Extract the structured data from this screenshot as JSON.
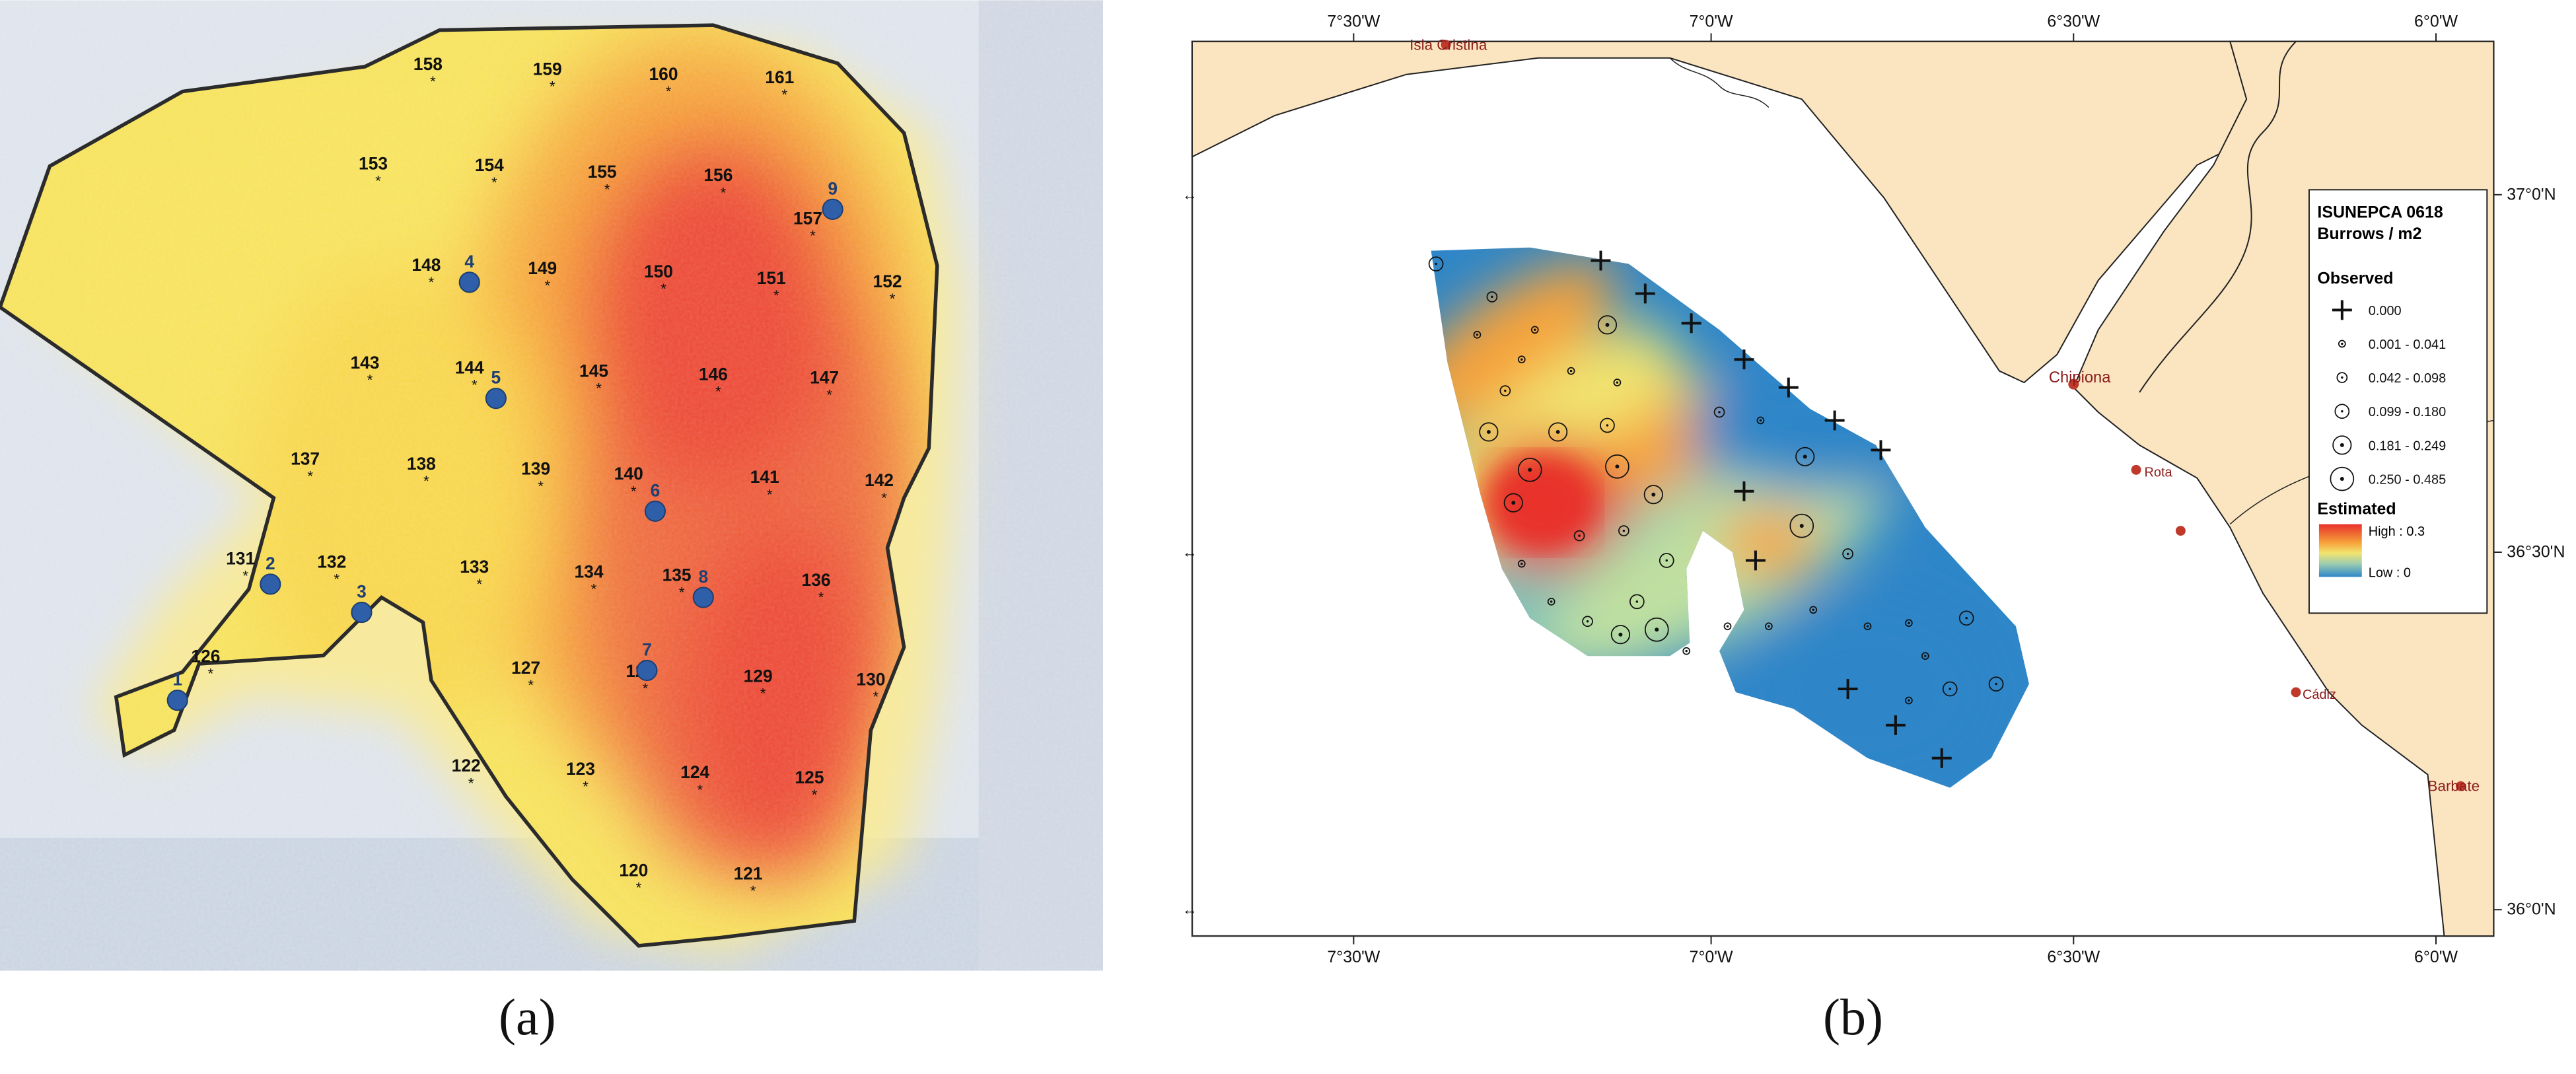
{
  "panel_a": {
    "caption": "(a)",
    "stations": [
      {
        "id": "158",
        "x": 258,
        "y": 42
      },
      {
        "id": "159",
        "x": 330,
        "y": 45
      },
      {
        "id": "160",
        "x": 400,
        "y": 48
      },
      {
        "id": "161",
        "x": 470,
        "y": 50
      },
      {
        "id": "153",
        "x": 225,
        "y": 102
      },
      {
        "id": "154",
        "x": 295,
        "y": 103
      },
      {
        "id": "155",
        "x": 363,
        "y": 107
      },
      {
        "id": "156",
        "x": 433,
        "y": 109
      },
      {
        "id": "157",
        "x": 487,
        "y": 135
      },
      {
        "id": "148",
        "x": 257,
        "y": 163
      },
      {
        "id": "149",
        "x": 327,
        "y": 165
      },
      {
        "id": "150",
        "x": 397,
        "y": 167
      },
      {
        "id": "151",
        "x": 465,
        "y": 171
      },
      {
        "id": "152",
        "x": 535,
        "y": 173
      },
      {
        "id": "143",
        "x": 220,
        "y": 222
      },
      {
        "id": "144",
        "x": 283,
        "y": 225
      },
      {
        "id": "145",
        "x": 358,
        "y": 227
      },
      {
        "id": "146",
        "x": 430,
        "y": 229
      },
      {
        "id": "147",
        "x": 497,
        "y": 231
      },
      {
        "id": "137",
        "x": 184,
        "y": 280
      },
      {
        "id": "138",
        "x": 254,
        "y": 283
      },
      {
        "id": "139",
        "x": 323,
        "y": 286
      },
      {
        "id": "140",
        "x": 379,
        "y": 289
      },
      {
        "id": "141",
        "x": 461,
        "y": 291
      },
      {
        "id": "142",
        "x": 530,
        "y": 293
      },
      {
        "id": "131",
        "x": 145,
        "y": 340
      },
      {
        "id": "132",
        "x": 200,
        "y": 342
      },
      {
        "id": "133",
        "x": 286,
        "y": 345
      },
      {
        "id": "134",
        "x": 355,
        "y": 348
      },
      {
        "id": "135",
        "x": 408,
        "y": 350
      },
      {
        "id": "136",
        "x": 492,
        "y": 353
      },
      {
        "id": "126",
        "x": 124,
        "y": 399
      },
      {
        "id": "127",
        "x": 317,
        "y": 406
      },
      {
        "id": "128",
        "x": 386,
        "y": 408
      },
      {
        "id": "129",
        "x": 457,
        "y": 411
      },
      {
        "id": "130",
        "x": 525,
        "y": 413
      },
      {
        "id": "122",
        "x": 281,
        "y": 465
      },
      {
        "id": "123",
        "x": 350,
        "y": 467
      },
      {
        "id": "124",
        "x": 419,
        "y": 469
      },
      {
        "id": "125",
        "x": 488,
        "y": 472
      },
      {
        "id": "120",
        "x": 382,
        "y": 528
      },
      {
        "id": "121",
        "x": 451,
        "y": 530
      }
    ],
    "blue_markers": [
      {
        "id": "9",
        "x": 502,
        "y": 126
      },
      {
        "id": "4",
        "x": 283,
        "y": 170
      },
      {
        "id": "5",
        "x": 299,
        "y": 240
      },
      {
        "id": "6",
        "x": 395,
        "y": 308
      },
      {
        "id": "2",
        "x": 163,
        "y": 352
      },
      {
        "id": "3",
        "x": 218,
        "y": 369
      },
      {
        "id": "8",
        "x": 424,
        "y": 360
      },
      {
        "id": "7",
        "x": 390,
        "y": 404
      },
      {
        "id": "1",
        "x": 107,
        "y": 422
      }
    ],
    "colors": {
      "outline": "#2b2b2b",
      "marker": "#2e5fa8",
      "hot": "#ec4a35",
      "warm": "#f6a53a",
      "mid": "#f5dc4f",
      "ground": "#dfe4ec"
    }
  },
  "panel_b": {
    "caption": "(b)",
    "x_ticks": [
      "7°30'W",
      "7°0'W",
      "6°30'W",
      "6°0'W"
    ],
    "y_ticks": [
      "37°0'N",
      "36°30'N",
      "36°0'N"
    ],
    "places": [
      "Isla Cristina",
      "Chipiona",
      "Rota",
      "Cádiz",
      "Barbate"
    ],
    "legend": {
      "title_line1": "ISUNEPCA 0618",
      "title_line2": "Burrows / m2",
      "observed_heading": "Observed",
      "observed_classes": [
        "0.000",
        "0.001 - 0.041",
        "0.042 - 0.098",
        "0.099 - 0.180",
        "0.181 - 0.249",
        "0.250 - 0.485"
      ],
      "estimated_heading": "Estimated",
      "high_label": "High : 0.3",
      "low_label": "Low : 0"
    },
    "colors": {
      "land": "#fbe5c0",
      "sea": "#ffffff",
      "coast": "#222222",
      "high": "#e8302c",
      "low": "#2e86c8",
      "place_dot": "#c0392b"
    }
  }
}
